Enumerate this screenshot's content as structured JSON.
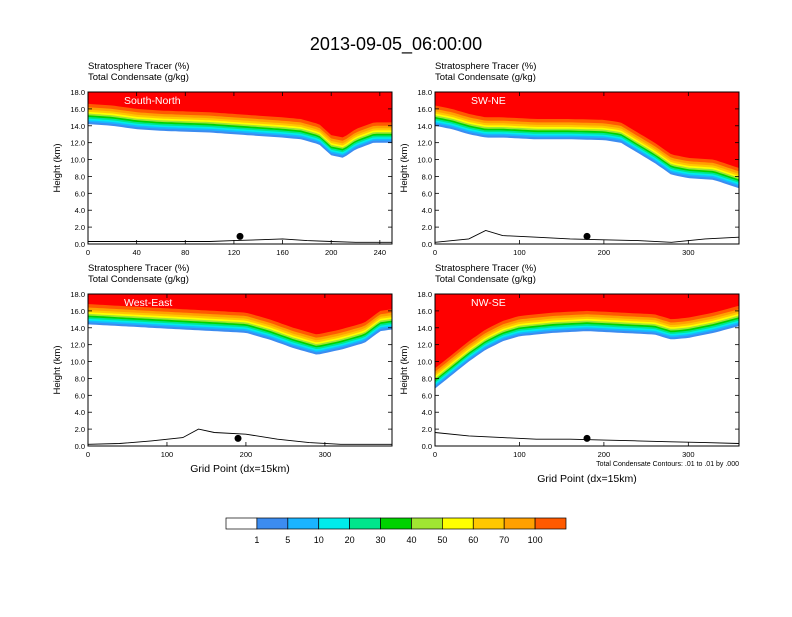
{
  "title": "2013-09-05_06:00:00",
  "chart_data": {
    "type": "heatmap",
    "title": "2013-09-05_06:00:00",
    "fill_variable": "Stratosphere Tracer   (%)",
    "contour_variable": "Total Condensate   (g/kg)",
    "contour_note": "Total Condensate Contours: .01 to .01 by .000",
    "contour_label": ".01",
    "ylabel": "Height (km)",
    "xlabel": "Grid Point (dx=15km)",
    "ylim": [
      0,
      18
    ],
    "yticks": [
      "0.0",
      "2.0",
      "4.0",
      "6.0",
      "8.0",
      "10.0",
      "12.0",
      "14.0",
      "16.0",
      "18.0"
    ],
    "colorbar": {
      "levels": [
        "1",
        "5",
        "10",
        "20",
        "30",
        "40",
        "50",
        "60",
        "70",
        "100"
      ],
      "colors": [
        "#ffffff",
        "#3c8cf0",
        "#1ab4ff",
        "#00ecec",
        "#00e68c",
        "#00d200",
        "#a0e632",
        "#ffff00",
        "#ffc800",
        "#ffa000",
        "#ff5a00",
        "#ff0000"
      ]
    },
    "panels": [
      {
        "name": "South-North",
        "xmax": 250,
        "xticks": [
          "0",
          "40",
          "80",
          "120",
          "160",
          "200",
          "240"
        ],
        "show_xlabel": false,
        "show_note": false,
        "marker_x": 125,
        "tracer_base_km": [
          [
            0,
            14.2
          ],
          [
            20,
            14.0
          ],
          [
            40,
            13.6
          ],
          [
            60,
            13.4
          ],
          [
            80,
            13.3
          ],
          [
            100,
            13.2
          ],
          [
            120,
            13.0
          ],
          [
            140,
            12.8
          ],
          [
            160,
            12.6
          ],
          [
            175,
            12.4
          ],
          [
            190,
            11.8
          ],
          [
            200,
            10.5
          ],
          [
            210,
            10.2
          ],
          [
            220,
            11.2
          ],
          [
            235,
            12.0
          ],
          [
            250,
            12.0
          ]
        ],
        "terrain_km": [
          [
            0,
            0.3
          ],
          [
            60,
            0.3
          ],
          [
            100,
            0.3
          ],
          [
            120,
            0.4
          ],
          [
            140,
            0.5
          ],
          [
            160,
            0.6
          ],
          [
            180,
            0.4
          ],
          [
            200,
            0.3
          ],
          [
            220,
            0.2
          ],
          [
            250,
            0.2
          ]
        ]
      },
      {
        "name": "SW-NE",
        "xmax": 360,
        "xticks": [
          "0",
          "100",
          "200",
          "300"
        ],
        "show_xlabel": false,
        "show_note": false,
        "marker_x": 180,
        "tracer_base_km": [
          [
            0,
            14.0
          ],
          [
            20,
            13.6
          ],
          [
            40,
            13.0
          ],
          [
            60,
            12.6
          ],
          [
            80,
            12.6
          ],
          [
            120,
            12.4
          ],
          [
            160,
            12.4
          ],
          [
            200,
            12.3
          ],
          [
            220,
            12.0
          ],
          [
            240,
            10.8
          ],
          [
            260,
            9.6
          ],
          [
            280,
            8.2
          ],
          [
            300,
            7.8
          ],
          [
            330,
            7.6
          ],
          [
            360,
            6.6
          ]
        ],
        "terrain_km": [
          [
            0,
            0.2
          ],
          [
            40,
            0.6
          ],
          [
            60,
            1.6
          ],
          [
            80,
            1.0
          ],
          [
            120,
            0.8
          ],
          [
            160,
            0.6
          ],
          [
            200,
            0.5
          ],
          [
            240,
            0.4
          ],
          [
            280,
            0.2
          ],
          [
            320,
            0.6
          ],
          [
            360,
            0.8
          ]
        ]
      },
      {
        "name": "West-East",
        "xmax": 385,
        "xticks": [
          "0",
          "100",
          "200",
          "300"
        ],
        "show_xlabel": true,
        "show_note": false,
        "marker_x": 190,
        "tracer_base_km": [
          [
            0,
            14.4
          ],
          [
            40,
            14.2
          ],
          [
            80,
            14.0
          ],
          [
            120,
            13.8
          ],
          [
            160,
            13.6
          ],
          [
            200,
            13.4
          ],
          [
            230,
            12.6
          ],
          [
            260,
            11.6
          ],
          [
            290,
            10.8
          ],
          [
            320,
            11.4
          ],
          [
            350,
            12.2
          ],
          [
            370,
            13.6
          ],
          [
            385,
            13.8
          ]
        ],
        "terrain_km": [
          [
            0,
            0.2
          ],
          [
            40,
            0.3
          ],
          [
            80,
            0.6
          ],
          [
            120,
            1.0
          ],
          [
            140,
            2.0
          ],
          [
            160,
            1.6
          ],
          [
            200,
            1.4
          ],
          [
            240,
            0.8
          ],
          [
            280,
            0.4
          ],
          [
            320,
            0.2
          ],
          [
            360,
            0.2
          ],
          [
            385,
            0.2
          ]
        ]
      },
      {
        "name": "NW-SE",
        "xmax": 360,
        "xticks": [
          "0",
          "100",
          "200",
          "300"
        ],
        "show_xlabel": true,
        "show_note": true,
        "marker_x": 180,
        "tracer_base_km": [
          [
            0,
            6.8
          ],
          [
            20,
            8.4
          ],
          [
            40,
            10.0
          ],
          [
            60,
            11.4
          ],
          [
            80,
            12.4
          ],
          [
            100,
            13.0
          ],
          [
            140,
            13.4
          ],
          [
            180,
            13.6
          ],
          [
            220,
            13.4
          ],
          [
            260,
            13.2
          ],
          [
            280,
            12.6
          ],
          [
            300,
            12.8
          ],
          [
            330,
            13.4
          ],
          [
            360,
            14.2
          ]
        ],
        "terrain_km": [
          [
            0,
            1.6
          ],
          [
            40,
            1.2
          ],
          [
            80,
            1.0
          ],
          [
            120,
            0.8
          ],
          [
            160,
            0.8
          ],
          [
            200,
            0.7
          ],
          [
            240,
            0.6
          ],
          [
            280,
            0.5
          ],
          [
            320,
            0.4
          ],
          [
            360,
            0.3
          ]
        ]
      }
    ]
  }
}
